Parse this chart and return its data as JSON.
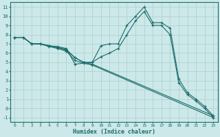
{
  "xlabel": "Humidex (Indice chaleur)",
  "bg_color": "#cce8e8",
  "grid_color": "#aacfcf",
  "line_color": "#1a6b6b",
  "xlim": [
    -0.5,
    23.5
  ],
  "ylim": [
    -1.5,
    11.5
  ],
  "xticks": [
    0,
    1,
    2,
    3,
    4,
    5,
    6,
    7,
    8,
    9,
    10,
    11,
    12,
    13,
    14,
    15,
    16,
    17,
    18,
    19,
    20,
    21,
    22,
    23
  ],
  "yticks": [
    -1,
    0,
    1,
    2,
    3,
    4,
    5,
    6,
    7,
    8,
    9,
    10,
    11
  ],
  "lines": [
    {
      "x": [
        0,
        1,
        2,
        3,
        4,
        5,
        6,
        7,
        8,
        9,
        10,
        11,
        12,
        13,
        14,
        15,
        16,
        17,
        18,
        19,
        20,
        21,
        22,
        23
      ],
      "y": [
        7.7,
        7.7,
        7.0,
        7.0,
        6.8,
        6.7,
        6.5,
        4.8,
        4.9,
        5.0,
        6.8,
        7.0,
        7.0,
        9.0,
        10.0,
        11.0,
        9.3,
        9.3,
        8.7,
        3.2,
        1.7,
        1.0,
        0.2,
        -0.8
      ]
    },
    {
      "x": [
        0,
        1,
        2,
        3,
        4,
        5,
        6,
        7,
        8,
        9,
        10,
        11,
        12,
        13,
        14,
        15,
        16,
        17,
        18,
        19,
        20,
        21,
        22,
        23
      ],
      "y": [
        7.7,
        7.7,
        7.0,
        7.0,
        6.8,
        6.6,
        6.4,
        5.5,
        5.0,
        5.0,
        5.6,
        6.0,
        6.5,
        8.0,
        9.5,
        10.5,
        9.0,
        9.0,
        8.0,
        2.8,
        1.5,
        0.8,
        0.0,
        -1.0
      ]
    },
    {
      "x": [
        0,
        1,
        2,
        3,
        4,
        5,
        6,
        7,
        8,
        9,
        23
      ],
      "y": [
        7.7,
        7.7,
        7.0,
        7.0,
        6.8,
        6.6,
        6.3,
        5.5,
        5.0,
        4.8,
        -0.8
      ]
    },
    {
      "x": [
        0,
        1,
        2,
        3,
        4,
        5,
        6,
        7,
        8,
        9,
        23
      ],
      "y": [
        7.7,
        7.7,
        7.0,
        7.0,
        6.7,
        6.5,
        6.2,
        5.2,
        4.9,
        4.7,
        -1.0
      ]
    }
  ]
}
